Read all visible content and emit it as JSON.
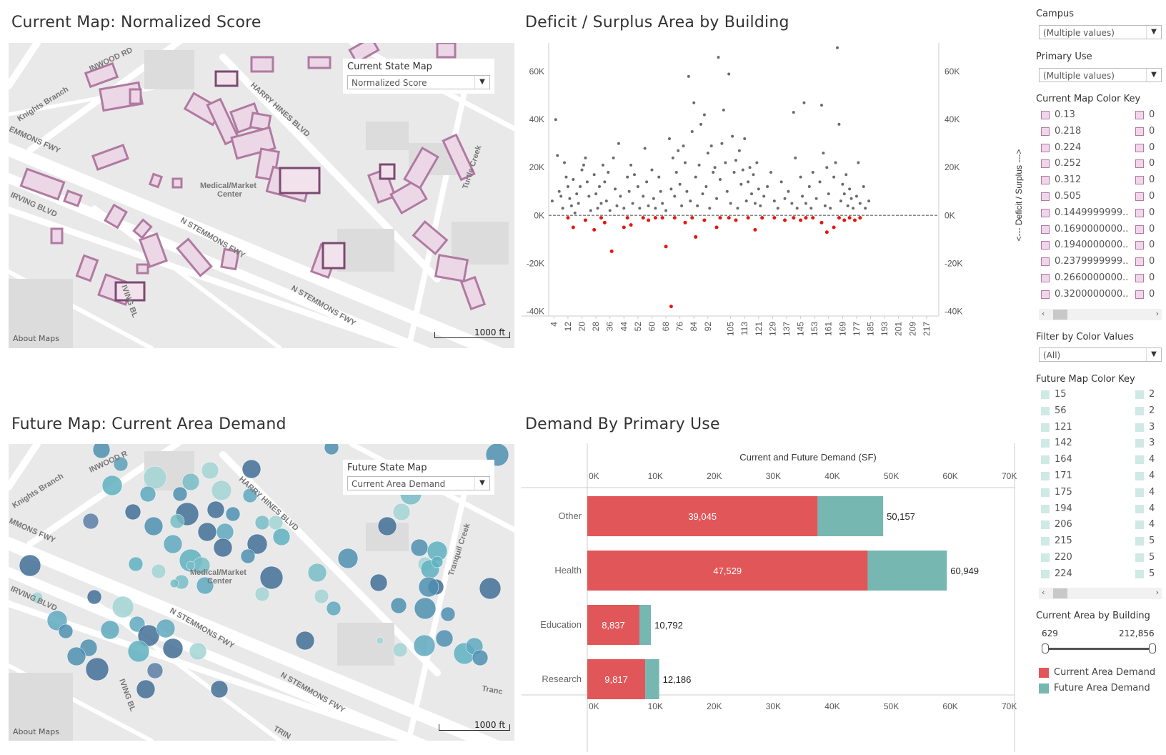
{
  "panels": {
    "current_map_title": "Current Map: Normalized Score",
    "scatter_title": "Deficit / Surplus Area by Building",
    "future_map_title": "Future Map: Current Area Demand",
    "bar_title": "Demand By Primary Use"
  },
  "current_map": {
    "control_label": "Current State Map",
    "control_value": "Normalized Score",
    "about": "About Maps",
    "scale": "1000 ft",
    "street_labels": [
      "INWOOD RD",
      "Knights Branch",
      "HARRY HINES BLVD",
      "EMMONS FWY",
      "IRVING BLVD",
      "Medical/Market",
      "Center",
      "N STEMMONS FWY",
      "N STEMMONS FWY",
      "IVING BL",
      "Turtle Creek"
    ]
  },
  "future_map": {
    "control_label": "Future State Map",
    "control_value": "Current Area Demand",
    "about": "About Maps",
    "scale": "1000 ft",
    "street_labels": [
      "INWOOD R",
      "Knights Branch",
      "HARRY HINES BLVD",
      "MMONS FWY",
      "IRVING BLVD",
      "Medical/Market",
      "Center",
      "N STEMMONS FWY",
      "N STEMMONS FWY",
      "IVING BL",
      "Tranquil Creek",
      "Tranc",
      "TRIN"
    ]
  },
  "sidebar": {
    "campus_label": "Campus",
    "campus_value": "(Multiple values)",
    "primary_use_label": "Primary Use",
    "primary_use_value": "(Multiple values)",
    "current_key_label": "Current Map Color Key",
    "current_key_values": [
      "0.13",
      "0.218",
      "0.224",
      "0.252",
      "0.312",
      "0.505",
      "0.1449999999..",
      "0.1690000000..",
      "0.1940000000..",
      "0.2379999999..",
      "0.2660000000..",
      "0.3200000000.."
    ],
    "current_key_col2": [
      "0",
      "0",
      "0",
      "0",
      "0",
      "0",
      "0",
      "0",
      "0",
      "0",
      "0",
      "0"
    ],
    "filter_label": "Filter by Color Values",
    "filter_value": "(All)",
    "future_key_label": "Future Map Color Key",
    "future_key_values": [
      "15",
      "56",
      "121",
      "142",
      "164",
      "171",
      "175",
      "194",
      "206",
      "215",
      "220",
      "224"
    ],
    "future_key_col2": [
      "2",
      "2",
      "3",
      "3",
      "4",
      "4",
      "4",
      "4",
      "4",
      "5",
      "5",
      "5"
    ],
    "area_label": "Current Area by Building",
    "area_min": "629",
    "area_max": "212,856",
    "legend_current": "Current Area Demand",
    "legend_future": "Future Area Demand",
    "scroll_left": "‹",
    "scroll_right": "›",
    "dd_arrow": "▼",
    "colors": {
      "current_key": "#f1d5ea",
      "current_key_border": "#b07aa1",
      "future_key": "#cfe9e3",
      "current_demand": "#e15759",
      "future_demand": "#76b7b2"
    }
  },
  "chart_data": [
    {
      "type": "scatter",
      "title": "Deficit / Surplus Area by Building",
      "ylabel_right": "<--- Deficit / Surplus --->",
      "ylim": [
        -42000,
        72000
      ],
      "y_ticks": [
        "60K",
        "40K",
        "20K",
        "0K",
        "-20K",
        "-40K"
      ],
      "y_tick_values": [
        60000,
        40000,
        20000,
        0,
        -20000,
        -40000
      ],
      "x_tick_labels": [
        "4",
        "12",
        "20",
        "28",
        "36",
        "44",
        "52",
        "60",
        "68",
        "76",
        "84",
        "92",
        "105",
        "113",
        "121",
        "129",
        "137",
        "145",
        "153",
        "161",
        "169",
        "177",
        "185",
        "193",
        "201",
        "209",
        "217"
      ],
      "x_range": [
        1,
        224
      ],
      "colors": {
        "surplus": "#6b6b6b",
        "deficit": "#e8150f"
      },
      "surplus_points": [
        [
          3,
          6000
        ],
        [
          5,
          40000
        ],
        [
          6,
          25000
        ],
        [
          7,
          10000
        ],
        [
          8,
          8000
        ],
        [
          9,
          3000
        ],
        [
          10,
          22000
        ],
        [
          11,
          16000
        ],
        [
          12,
          12000
        ],
        [
          13,
          7000
        ],
        [
          14,
          4000
        ],
        [
          15,
          15000
        ],
        [
          16,
          1000
        ],
        [
          17,
          9000
        ],
        [
          18,
          5000
        ],
        [
          19,
          12000
        ],
        [
          20,
          19000
        ],
        [
          21,
          21000
        ],
        [
          22,
          24000
        ],
        [
          23,
          14000
        ],
        [
          24,
          8000
        ],
        [
          25,
          2000
        ],
        [
          27,
          17000
        ],
        [
          28,
          9000
        ],
        [
          29,
          3000
        ],
        [
          30,
          12000
        ],
        [
          31,
          5000
        ],
        [
          32,
          21000
        ],
        [
          33,
          14000
        ],
        [
          34,
          6000
        ],
        [
          35,
          18000
        ],
        [
          36,
          2000
        ],
        [
          38,
          24000
        ],
        [
          39,
          11000
        ],
        [
          40,
          4000
        ],
        [
          41,
          30000
        ],
        [
          42,
          8000
        ],
        [
          44,
          3000
        ],
        [
          46,
          16000
        ],
        [
          47,
          10000
        ],
        [
          48,
          21000
        ],
        [
          49,
          5000
        ],
        [
          50,
          17000
        ],
        [
          52,
          12000
        ],
        [
          53,
          3000
        ],
        [
          55,
          8000
        ],
        [
          56,
          28000
        ],
        [
          57,
          14000
        ],
        [
          58,
          4000
        ],
        [
          60,
          19000
        ],
        [
          61,
          7000
        ],
        [
          62,
          3000
        ],
        [
          64,
          16000
        ],
        [
          65,
          10000
        ],
        [
          66,
          5000
        ],
        [
          68,
          2000
        ],
        [
          70,
          32000
        ],
        [
          71,
          11000
        ],
        [
          72,
          24000
        ],
        [
          73,
          8000
        ],
        [
          74,
          18000
        ],
        [
          75,
          27000
        ],
        [
          76,
          13000
        ],
        [
          77,
          4000
        ],
        [
          78,
          29000
        ],
        [
          79,
          22000
        ],
        [
          80,
          10000
        ],
        [
          81,
          58000
        ],
        [
          82,
          6000
        ],
        [
          83,
          35000
        ],
        [
          84,
          47000
        ],
        [
          85,
          16000
        ],
        [
          86,
          4000
        ],
        [
          87,
          21000
        ],
        [
          88,
          38000
        ],
        [
          89,
          9000
        ],
        [
          90,
          42000
        ],
        [
          91,
          12000
        ],
        [
          92,
          26000
        ],
        [
          93,
          3000
        ],
        [
          94,
          29000
        ],
        [
          95,
          18000
        ],
        [
          96,
          20000
        ],
        [
          97,
          7000
        ],
        [
          98,
          66000
        ],
        [
          99,
          15000
        ],
        [
          100,
          30000
        ],
        [
          101,
          44000
        ],
        [
          102,
          22000
        ],
        [
          103,
          10000
        ],
        [
          104,
          59000
        ],
        [
          105,
          5000
        ],
        [
          106,
          33000
        ],
        [
          107,
          18000
        ],
        [
          108,
          23000
        ],
        [
          109,
          3000
        ],
        [
          110,
          27000
        ],
        [
          111,
          13000
        ],
        [
          112,
          19000
        ],
        [
          113,
          32000
        ],
        [
          114,
          6000
        ],
        [
          115,
          14000
        ],
        [
          116,
          20000
        ],
        [
          117,
          9000
        ],
        [
          118,
          17000
        ],
        [
          119,
          5000
        ],
        [
          120,
          22000
        ],
        [
          121,
          11000
        ],
        [
          122,
          4000
        ],
        [
          124,
          8000
        ],
        [
          126,
          12000
        ],
        [
          128,
          18000
        ],
        [
          130,
          6000
        ],
        [
          132,
          3000
        ],
        [
          134,
          14000
        ],
        [
          136,
          7000
        ],
        [
          138,
          10000
        ],
        [
          140,
          5000
        ],
        [
          141,
          43000
        ],
        [
          142,
          24000
        ],
        [
          143,
          3000
        ],
        [
          145,
          16000
        ],
        [
          146,
          8000
        ],
        [
          147,
          47000
        ],
        [
          148,
          5000
        ],
        [
          150,
          12000
        ],
        [
          151,
          3000
        ],
        [
          152,
          18000
        ],
        [
          154,
          7000
        ],
        [
          156,
          14000
        ],
        [
          157,
          46000
        ],
        [
          158,
          26000
        ],
        [
          159,
          4000
        ],
        [
          160,
          20000
        ],
        [
          161,
          9000
        ],
        [
          162,
          3000
        ],
        [
          164,
          16000
        ],
        [
          165,
          22000
        ],
        [
          166,
          70000
        ],
        [
          167,
          38000
        ],
        [
          168,
          6000
        ],
        [
          169,
          13000
        ],
        [
          170,
          9000
        ],
        [
          171,
          17000
        ],
        [
          172,
          4000
        ],
        [
          173,
          11000
        ],
        [
          174,
          7000
        ],
        [
          175,
          3000
        ],
        [
          177,
          8000
        ],
        [
          178,
          22000
        ],
        [
          179,
          5000
        ],
        [
          181,
          12000
        ],
        [
          182,
          3000
        ],
        [
          184,
          6000
        ]
      ],
      "deficit_points": [
        [
          12,
          -1000
        ],
        [
          15,
          -5000
        ],
        [
          22,
          -2000
        ],
        [
          27,
          -6000
        ],
        [
          31,
          -1000
        ],
        [
          33,
          -3000
        ],
        [
          37,
          -15000
        ],
        [
          44,
          -5000
        ],
        [
          46,
          -1000
        ],
        [
          48,
          -4000
        ],
        [
          55,
          -1000
        ],
        [
          58,
          -2000
        ],
        [
          62,
          -1000
        ],
        [
          66,
          -1000
        ],
        [
          68,
          -13000
        ],
        [
          71,
          -38000
        ],
        [
          73,
          -1000
        ],
        [
          79,
          -3000
        ],
        [
          83,
          -1000
        ],
        [
          85,
          -9000
        ],
        [
          90,
          -2000
        ],
        [
          97,
          -5000
        ],
        [
          99,
          -1000
        ],
        [
          104,
          -1000
        ],
        [
          108,
          -2000
        ],
        [
          115,
          -1000
        ],
        [
          119,
          -6000
        ],
        [
          123,
          -1000
        ],
        [
          130,
          -1000
        ],
        [
          136,
          -2000
        ],
        [
          141,
          -1000
        ],
        [
          145,
          -2000
        ],
        [
          148,
          -1000
        ],
        [
          152,
          -1000
        ],
        [
          157,
          -3000
        ],
        [
          160,
          -7000
        ],
        [
          164,
          -5000
        ],
        [
          167,
          -1000
        ],
        [
          170,
          -2000
        ],
        [
          173,
          -1000
        ],
        [
          176,
          -2000
        ],
        [
          179,
          -1000
        ]
      ]
    },
    {
      "type": "bar",
      "orientation": "horizontal",
      "stacked": true,
      "title": "Demand By Primary Use",
      "xlabel": "Current and Future Demand (SF)",
      "xlim": [
        0,
        70000
      ],
      "x_ticks": [
        "0K",
        "10K",
        "20K",
        "30K",
        "40K",
        "50K",
        "60K",
        "70K"
      ],
      "x_tick_values": [
        0,
        10000,
        20000,
        30000,
        40000,
        50000,
        60000,
        70000
      ],
      "categories": [
        "Other",
        "Health",
        "Education",
        "Research"
      ],
      "series": [
        {
          "name": "Current Area Demand",
          "values": [
            39045,
            47529,
            8837,
            9817
          ],
          "color": "#e15759"
        },
        {
          "name": "Future Area Demand",
          "values": [
            11112,
            13420,
            1955,
            2369
          ],
          "color": "#76b7b2"
        }
      ],
      "segment_labels": [
        "39,045",
        "47,529",
        "8,837",
        "9,817"
      ],
      "total_labels": [
        "50,157",
        "60,949",
        "10,792",
        "12,186"
      ]
    }
  ]
}
